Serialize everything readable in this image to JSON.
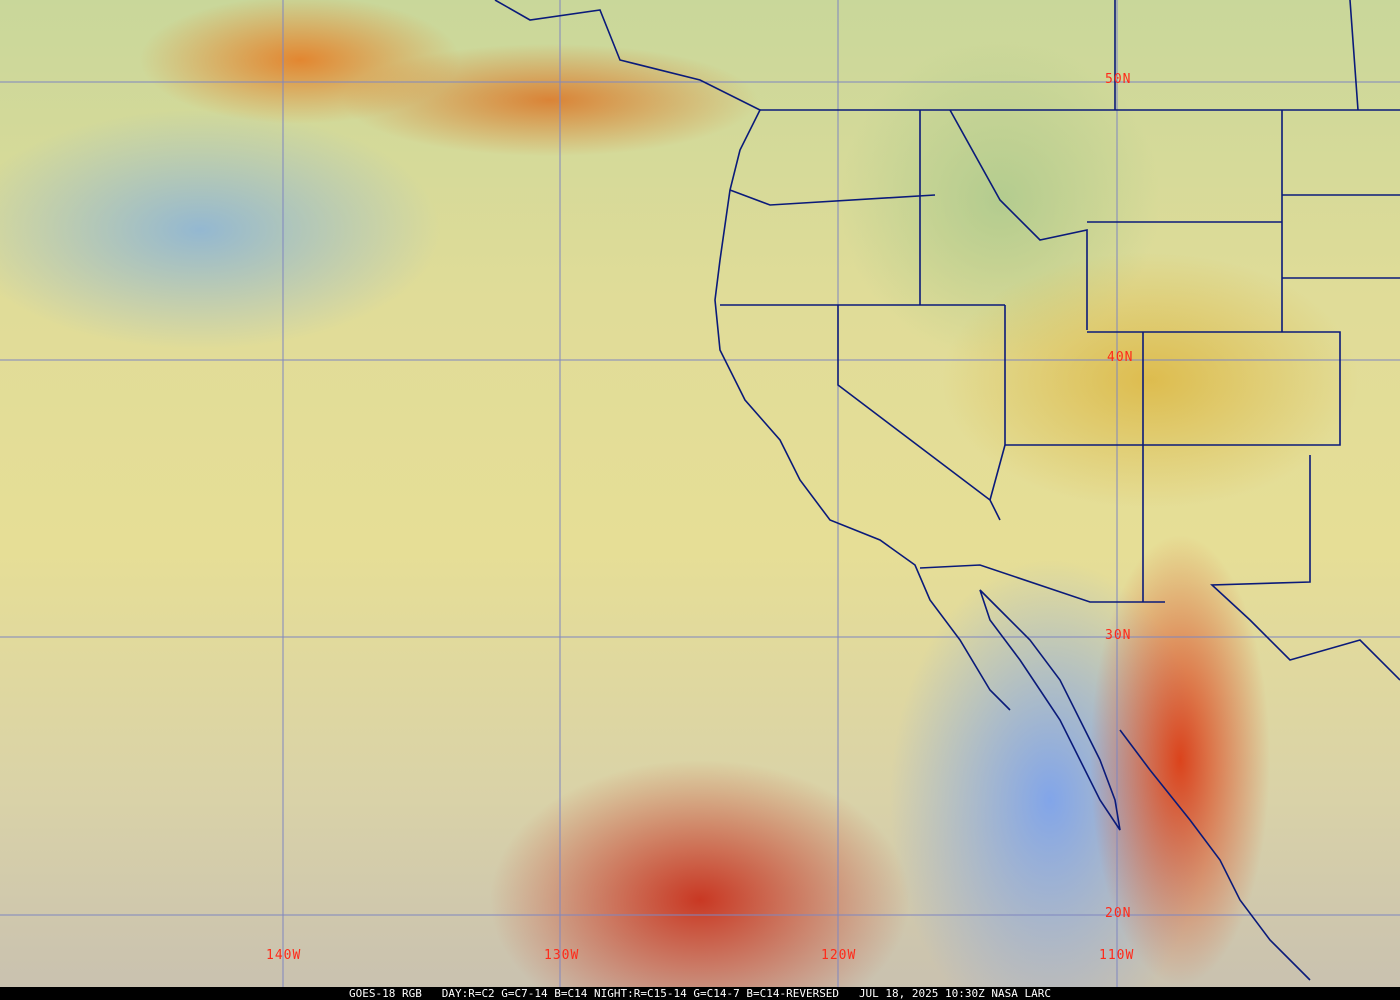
{
  "map": {
    "latitude_labels": [
      "50N",
      "40N",
      "30N",
      "20N"
    ],
    "longitude_labels": [
      "140W",
      "130W",
      "120W",
      "110W"
    ],
    "colors": {
      "grid": "#7f86c0",
      "borders": "#0a1a7a",
      "labels": "#ff2a1a"
    }
  },
  "caption": {
    "satellite": "GOES-18 RGB",
    "recipe": "DAY:R=C2 G=C7-14 B=C14 NIGHT:R=C15-14 G=C14-7 B=C14-REVERSED",
    "timestamp": "JUL 18, 2025 10:30Z",
    "source": "NASA LARC"
  }
}
